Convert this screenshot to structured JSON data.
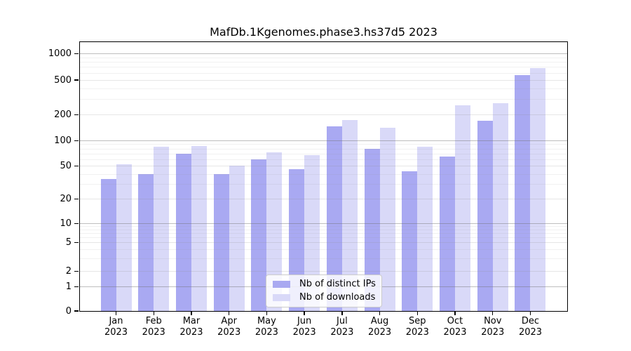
{
  "chart_data": {
    "type": "bar",
    "title": "MafDb.1Kgenomes.phase3.hs37d5 2023",
    "categories": [
      "Jan",
      "Feb",
      "Mar",
      "Apr",
      "May",
      "Jun",
      "Jul",
      "Aug",
      "Sep",
      "Oct",
      "Nov",
      "Dec"
    ],
    "category_year": "2023",
    "series": [
      {
        "name": "Nb of distinct IPs",
        "color": "#a9a9f1",
        "values": [
          35,
          40,
          70,
          40,
          60,
          46,
          146,
          80,
          43,
          65,
          170,
          570
        ]
      },
      {
        "name": "Nb of downloads",
        "color": "#d9d9f8",
        "values": [
          53,
          84,
          86,
          51,
          73,
          67,
          175,
          140,
          84,
          257,
          273,
          690
        ]
      }
    ],
    "yscale": "log-like with zero baseline",
    "y_ticks": [
      0,
      1,
      2,
      5,
      10,
      20,
      50,
      100,
      200,
      500,
      1000
    ],
    "y_tick_labels": [
      "0",
      "1",
      "2",
      "5",
      "10",
      "20",
      "50",
      "100",
      "200",
      "500",
      "1000"
    ],
    "xlabel": "",
    "ylabel": "",
    "grid": true,
    "legend_position": "lower center-right inside plot"
  }
}
